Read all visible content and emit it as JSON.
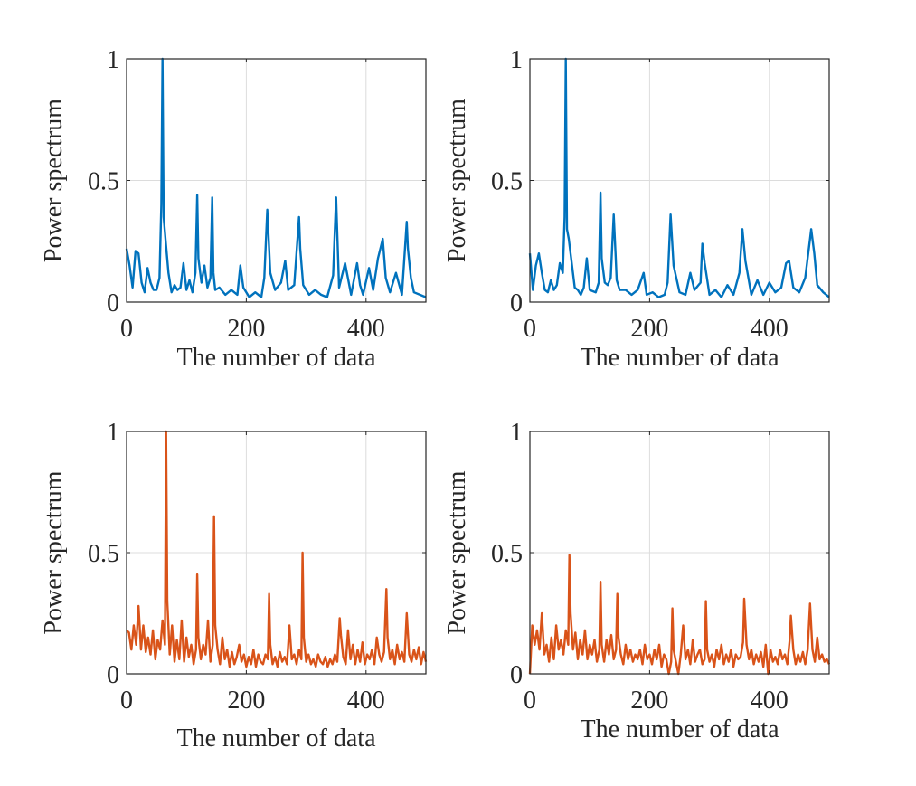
{
  "chart_data": [
    {
      "type": "line",
      "xlabel": "The number of data",
      "ylabel": "Power spectrum",
      "xlim": [
        0,
        500
      ],
      "ylim": [
        0,
        1
      ],
      "xticks": [
        0,
        200,
        400
      ],
      "yticks": [
        0,
        0.5,
        1
      ],
      "xtick_labels": [
        "0",
        "200",
        "400"
      ],
      "ytick_labels": [
        "0",
        "0.5",
        "1"
      ],
      "grid": true,
      "color": "#0072BD",
      "x": [
        0,
        5,
        10,
        15,
        20,
        25,
        30,
        35,
        40,
        45,
        50,
        55,
        58,
        60,
        62,
        65,
        70,
        75,
        80,
        85,
        90,
        95,
        100,
        105,
        110,
        115,
        118,
        120,
        125,
        130,
        135,
        140,
        143,
        145,
        148,
        155,
        165,
        175,
        185,
        190,
        195,
        205,
        215,
        225,
        230,
        235,
        240,
        248,
        258,
        265,
        270,
        280,
        288,
        290,
        295,
        305,
        315,
        325,
        335,
        345,
        350,
        352,
        355,
        365,
        375,
        385,
        390,
        395,
        405,
        412,
        420,
        428,
        433,
        440,
        450,
        460,
        468,
        470,
        475,
        480,
        490,
        500
      ],
      "y": [
        0.22,
        0.15,
        0.06,
        0.21,
        0.2,
        0.08,
        0.04,
        0.14,
        0.08,
        0.05,
        0.05,
        0.1,
        0.4,
        1.0,
        0.35,
        0.26,
        0.12,
        0.04,
        0.07,
        0.05,
        0.06,
        0.16,
        0.05,
        0.09,
        0.04,
        0.12,
        0.44,
        0.18,
        0.08,
        0.15,
        0.06,
        0.1,
        0.43,
        0.12,
        0.05,
        0.06,
        0.03,
        0.05,
        0.03,
        0.15,
        0.06,
        0.02,
        0.04,
        0.02,
        0.1,
        0.38,
        0.12,
        0.05,
        0.08,
        0.17,
        0.05,
        0.07,
        0.35,
        0.22,
        0.07,
        0.03,
        0.05,
        0.03,
        0.02,
        0.11,
        0.43,
        0.28,
        0.06,
        0.16,
        0.03,
        0.16,
        0.07,
        0.03,
        0.14,
        0.05,
        0.18,
        0.26,
        0.1,
        0.04,
        0.12,
        0.03,
        0.33,
        0.22,
        0.1,
        0.04,
        0.03,
        0.02
      ]
    },
    {
      "type": "line",
      "xlabel": "The number of data",
      "ylabel": "Power spectrum",
      "xlim": [
        0,
        500
      ],
      "ylim": [
        0,
        1
      ],
      "xticks": [
        0,
        200,
        400
      ],
      "yticks": [
        0,
        0.5,
        1
      ],
      "xtick_labels": [
        "0",
        "200",
        "400"
      ],
      "ytick_labels": [
        "0",
        "0.5",
        "1"
      ],
      "grid": true,
      "color": "#0072BD",
      "x": [
        0,
        5,
        10,
        15,
        20,
        25,
        30,
        35,
        40,
        45,
        50,
        55,
        58,
        60,
        62,
        65,
        70,
        75,
        80,
        85,
        90,
        95,
        100,
        110,
        115,
        118,
        120,
        125,
        130,
        135,
        140,
        143,
        145,
        150,
        160,
        170,
        180,
        190,
        195,
        205,
        215,
        225,
        230,
        235,
        240,
        250,
        260,
        268,
        275,
        285,
        288,
        292,
        300,
        310,
        320,
        330,
        340,
        350,
        355,
        360,
        370,
        380,
        390,
        400,
        410,
        420,
        428,
        433,
        440,
        450,
        460,
        468,
        470,
        475,
        480,
        490,
        500
      ],
      "y": [
        0.2,
        0.05,
        0.15,
        0.2,
        0.12,
        0.05,
        0.04,
        0.09,
        0.05,
        0.07,
        0.16,
        0.12,
        0.35,
        1.0,
        0.3,
        0.26,
        0.16,
        0.06,
        0.05,
        0.03,
        0.06,
        0.18,
        0.05,
        0.04,
        0.08,
        0.45,
        0.18,
        0.08,
        0.07,
        0.1,
        0.36,
        0.2,
        0.09,
        0.05,
        0.05,
        0.03,
        0.05,
        0.12,
        0.03,
        0.04,
        0.02,
        0.03,
        0.08,
        0.36,
        0.15,
        0.04,
        0.03,
        0.12,
        0.05,
        0.08,
        0.24,
        0.16,
        0.03,
        0.05,
        0.02,
        0.07,
        0.03,
        0.12,
        0.3,
        0.17,
        0.03,
        0.09,
        0.03,
        0.08,
        0.04,
        0.06,
        0.16,
        0.17,
        0.06,
        0.04,
        0.1,
        0.26,
        0.3,
        0.2,
        0.07,
        0.04,
        0.02
      ]
    },
    {
      "type": "line",
      "xlabel": "The number of data",
      "ylabel": "Power spectrum",
      "xlim": [
        0,
        500
      ],
      "ylim": [
        0,
        1
      ],
      "xticks": [
        0,
        200,
        400
      ],
      "yticks": [
        0,
        0.5,
        1
      ],
      "xtick_labels": [
        "0",
        "200",
        "400"
      ],
      "ytick_labels": [
        "0",
        "0.5",
        "1"
      ],
      "grid": true,
      "color": "#D95319",
      "x": [
        0,
        4,
        8,
        12,
        16,
        20,
        24,
        28,
        32,
        36,
        40,
        44,
        48,
        52,
        56,
        60,
        64,
        66,
        68,
        72,
        76,
        80,
        84,
        88,
        92,
        96,
        100,
        104,
        108,
        112,
        116,
        118,
        120,
        124,
        128,
        132,
        136,
        140,
        144,
        146,
        148,
        152,
        156,
        160,
        164,
        168,
        172,
        176,
        180,
        184,
        188,
        192,
        196,
        200,
        204,
        208,
        212,
        216,
        220,
        224,
        228,
        232,
        236,
        238,
        240,
        244,
        248,
        252,
        256,
        260,
        264,
        268,
        272,
        276,
        280,
        284,
        288,
        292,
        294,
        296,
        300,
        304,
        308,
        312,
        316,
        320,
        324,
        328,
        332,
        336,
        340,
        344,
        348,
        352,
        356,
        358,
        362,
        366,
        370,
        374,
        378,
        382,
        386,
        390,
        394,
        398,
        402,
        406,
        410,
        414,
        418,
        422,
        426,
        430,
        434,
        436,
        440,
        444,
        448,
        452,
        456,
        460,
        464,
        468,
        472,
        476,
        480,
        484,
        488,
        492,
        496,
        500
      ],
      "y": [
        0.18,
        0.17,
        0.1,
        0.2,
        0.12,
        0.28,
        0.1,
        0.2,
        0.09,
        0.15,
        0.08,
        0.18,
        0.06,
        0.14,
        0.1,
        0.22,
        0.12,
        1.0,
        0.3,
        0.08,
        0.2,
        0.05,
        0.14,
        0.06,
        0.22,
        0.05,
        0.15,
        0.07,
        0.12,
        0.04,
        0.1,
        0.41,
        0.15,
        0.06,
        0.12,
        0.08,
        0.22,
        0.05,
        0.12,
        0.65,
        0.2,
        0.1,
        0.04,
        0.15,
        0.06,
        0.1,
        0.03,
        0.09,
        0.04,
        0.07,
        0.12,
        0.05,
        0.08,
        0.03,
        0.07,
        0.04,
        0.1,
        0.03,
        0.08,
        0.05,
        0.04,
        0.08,
        0.06,
        0.33,
        0.12,
        0.04,
        0.07,
        0.03,
        0.09,
        0.05,
        0.07,
        0.04,
        0.2,
        0.06,
        0.08,
        0.04,
        0.1,
        0.06,
        0.5,
        0.15,
        0.05,
        0.08,
        0.04,
        0.06,
        0.03,
        0.08,
        0.05,
        0.04,
        0.07,
        0.03,
        0.06,
        0.04,
        0.08,
        0.05,
        0.23,
        0.16,
        0.07,
        0.04,
        0.18,
        0.06,
        0.12,
        0.04,
        0.1,
        0.05,
        0.13,
        0.04,
        0.08,
        0.06,
        0.1,
        0.04,
        0.15,
        0.08,
        0.05,
        0.09,
        0.35,
        0.15,
        0.06,
        0.1,
        0.04,
        0.12,
        0.06,
        0.09,
        0.05,
        0.25,
        0.08,
        0.05,
        0.1,
        0.06,
        0.11,
        0.04,
        0.09,
        0.05
      ]
    },
    {
      "type": "line",
      "xlabel": "The number of data",
      "ylabel": "Power spectrum",
      "xlim": [
        0,
        500
      ],
      "ylim": [
        0,
        1
      ],
      "xticks": [
        0,
        200,
        400
      ],
      "yticks": [
        0,
        0.5,
        1
      ],
      "xtick_labels": [
        "0",
        "200",
        "400"
      ],
      "ytick_labels": [
        "0",
        "0.5",
        "1"
      ],
      "grid": true,
      "color": "#D95319",
      "x": [
        0,
        4,
        8,
        12,
        16,
        20,
        24,
        28,
        32,
        36,
        40,
        44,
        48,
        52,
        56,
        60,
        64,
        66,
        68,
        72,
        76,
        80,
        84,
        88,
        92,
        96,
        100,
        104,
        108,
        112,
        116,
        118,
        120,
        124,
        128,
        132,
        136,
        140,
        144,
        146,
        148,
        152,
        156,
        160,
        164,
        168,
        172,
        176,
        180,
        184,
        188,
        192,
        196,
        200,
        204,
        208,
        212,
        216,
        220,
        224,
        228,
        232,
        236,
        238,
        240,
        244,
        248,
        252,
        256,
        260,
        264,
        268,
        272,
        276,
        280,
        284,
        288,
        292,
        294,
        296,
        300,
        304,
        308,
        312,
        316,
        320,
        324,
        328,
        332,
        336,
        340,
        344,
        348,
        352,
        356,
        358,
        362,
        366,
        370,
        374,
        378,
        382,
        386,
        390,
        394,
        398,
        402,
        406,
        410,
        414,
        418,
        422,
        426,
        430,
        434,
        436,
        440,
        444,
        448,
        452,
        456,
        460,
        464,
        468,
        472,
        476,
        480,
        484,
        488,
        492,
        496,
        500
      ],
      "y": [
        0.0,
        0.2,
        0.12,
        0.18,
        0.1,
        0.25,
        0.08,
        0.12,
        0.05,
        0.15,
        0.06,
        0.2,
        0.1,
        0.14,
        0.08,
        0.18,
        0.12,
        0.49,
        0.25,
        0.1,
        0.17,
        0.06,
        0.14,
        0.08,
        0.18,
        0.06,
        0.12,
        0.08,
        0.14,
        0.05,
        0.1,
        0.38,
        0.12,
        0.05,
        0.14,
        0.08,
        0.16,
        0.06,
        0.1,
        0.33,
        0.15,
        0.08,
        0.04,
        0.12,
        0.06,
        0.1,
        0.05,
        0.08,
        0.06,
        0.1,
        0.04,
        0.12,
        0.06,
        0.08,
        0.04,
        0.1,
        0.06,
        0.12,
        0.03,
        0.08,
        0.06,
        0.0,
        0.05,
        0.27,
        0.1,
        0.05,
        0.0,
        0.08,
        0.2,
        0.06,
        0.1,
        0.04,
        0.14,
        0.05,
        0.08,
        0.1,
        0.04,
        0.06,
        0.3,
        0.1,
        0.05,
        0.08,
        0.03,
        0.1,
        0.06,
        0.12,
        0.04,
        0.08,
        0.05,
        0.1,
        0.03,
        0.08,
        0.06,
        0.07,
        0.13,
        0.31,
        0.12,
        0.06,
        0.1,
        0.04,
        0.08,
        0.05,
        0.09,
        0.03,
        0.12,
        0.0,
        0.1,
        0.05,
        0.07,
        0.04,
        0.1,
        0.06,
        0.08,
        0.04,
        0.14,
        0.24,
        0.1,
        0.04,
        0.08,
        0.05,
        0.09,
        0.04,
        0.1,
        0.29,
        0.1,
        0.05,
        0.15,
        0.06,
        0.08,
        0.05,
        0.06,
        0.04
      ]
    }
  ]
}
